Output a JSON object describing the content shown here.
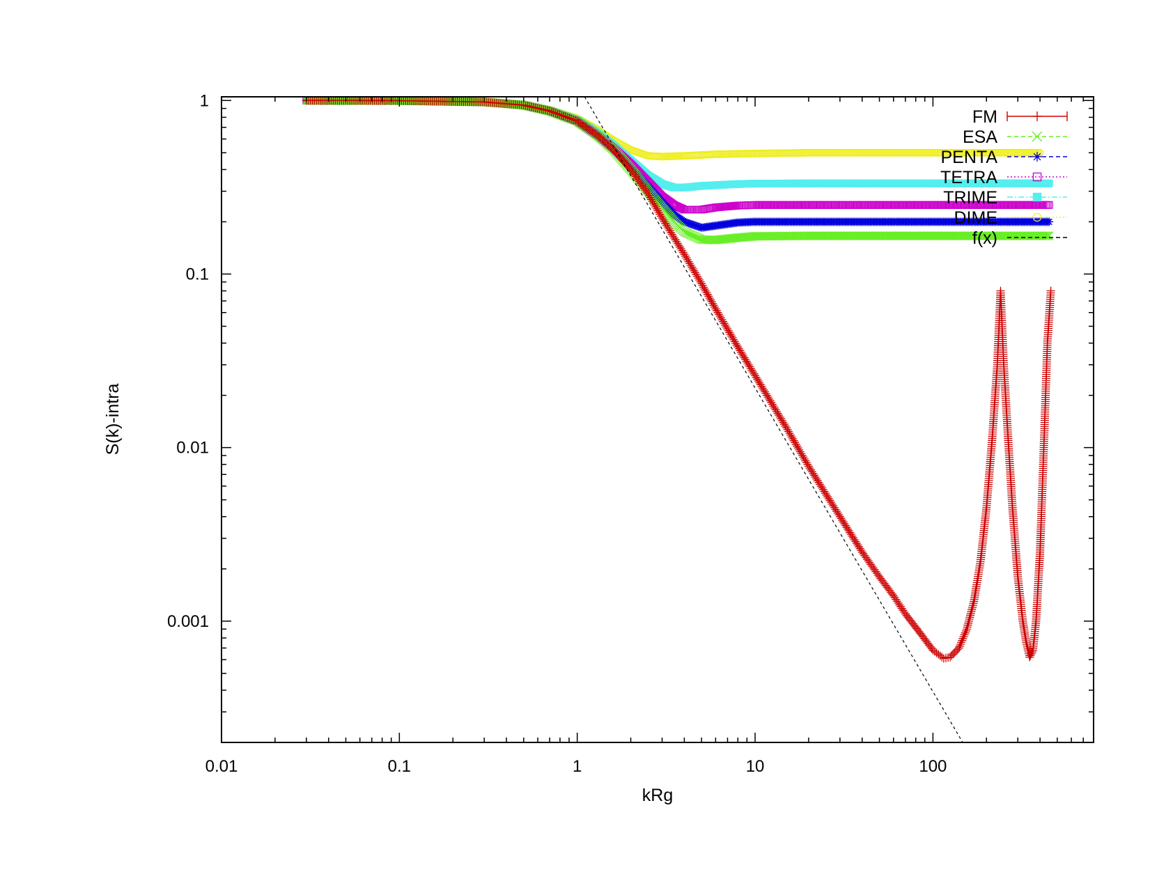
{
  "chart_data": {
    "type": "scatter",
    "title": "",
    "xlabel": "kRg",
    "ylabel": "S(k)-intra",
    "xscale": "log",
    "yscale": "log",
    "xlim": [
      0.01,
      800
    ],
    "ylim": [
      0.0002,
      1.05
    ],
    "grid": false,
    "legend_position": "top-right",
    "x_ticks": [
      {
        "value": 0.01,
        "label": "0.01"
      },
      {
        "value": 0.1,
        "label": "0.1"
      },
      {
        "value": 1,
        "label": "1"
      },
      {
        "value": 10,
        "label": "10"
      },
      {
        "value": 100,
        "label": "100"
      }
    ],
    "y_ticks": [
      {
        "value": 1,
        "label": "1"
      },
      {
        "value": 0.1,
        "label": "0.1"
      },
      {
        "value": 0.01,
        "label": "0.01"
      },
      {
        "value": 0.001,
        "label": "0.001"
      }
    ],
    "series": [
      {
        "name": "FM",
        "color": "#cc0000",
        "marker": "plus",
        "line": "solid",
        "points": [
          [
            0.03,
            1.0
          ],
          [
            0.1,
            0.998
          ],
          [
            0.3,
            0.98
          ],
          [
            0.5,
            0.94
          ],
          [
            0.7,
            0.87
          ],
          [
            1.0,
            0.76
          ],
          [
            1.3,
            0.63
          ],
          [
            1.6,
            0.52
          ],
          [
            2.0,
            0.4
          ],
          [
            2.5,
            0.29
          ],
          [
            3.0,
            0.21
          ],
          [
            4.0,
            0.13
          ],
          [
            5.0,
            0.088
          ],
          [
            6.0,
            0.063
          ],
          [
            8.0,
            0.038
          ],
          [
            10.0,
            0.026
          ],
          [
            15.0,
            0.013
          ],
          [
            20.0,
            0.0078
          ],
          [
            30.0,
            0.004
          ],
          [
            40.0,
            0.0025
          ],
          [
            50.0,
            0.0018
          ],
          [
            60.0,
            0.0014
          ],
          [
            70.0,
            0.0011
          ],
          [
            85.0,
            0.00085
          ],
          [
            100.0,
            0.00068
          ],
          [
            115.0,
            0.00061
          ],
          [
            125.0,
            0.00062
          ],
          [
            140.0,
            0.0007
          ],
          [
            155.0,
            0.0009
          ],
          [
            170.0,
            0.0013
          ],
          [
            185.0,
            0.0022
          ],
          [
            200.0,
            0.0045
          ],
          [
            215.0,
            0.011
          ],
          [
            230.0,
            0.03
          ],
          [
            240.0,
            0.08
          ],
          [
            250.0,
            0.03
          ],
          [
            265.0,
            0.011
          ],
          [
            280.0,
            0.0045
          ],
          [
            300.0,
            0.0018
          ],
          [
            320.0,
            0.001
          ],
          [
            335.0,
            0.00075
          ],
          [
            350.0,
            0.00062
          ],
          [
            365.0,
            0.00068
          ],
          [
            380.0,
            0.001
          ],
          [
            400.0,
            0.0025
          ],
          [
            420.0,
            0.01
          ],
          [
            440.0,
            0.04
          ],
          [
            460.0,
            0.08
          ]
        ]
      },
      {
        "name": "ESA",
        "color": "#66ee22",
        "marker": "cross",
        "line": "dashed",
        "points": [
          [
            0.03,
            1.0
          ],
          [
            0.1,
            0.998
          ],
          [
            0.3,
            0.98
          ],
          [
            0.5,
            0.94
          ],
          [
            0.7,
            0.87
          ],
          [
            1.0,
            0.76
          ],
          [
            1.3,
            0.63
          ],
          [
            1.6,
            0.52
          ],
          [
            2.0,
            0.4
          ],
          [
            2.5,
            0.3
          ],
          [
            3.0,
            0.24
          ],
          [
            3.5,
            0.2
          ],
          [
            4.0,
            0.175
          ],
          [
            5.0,
            0.158
          ],
          [
            6.0,
            0.157
          ],
          [
            8.0,
            0.162
          ],
          [
            10.0,
            0.165
          ],
          [
            20.0,
            0.166
          ],
          [
            50.0,
            0.166
          ],
          [
            100.0,
            0.166
          ],
          [
            200.0,
            0.166
          ],
          [
            450.0,
            0.166
          ]
        ]
      },
      {
        "name": "PENTA",
        "color": "#0000dd",
        "marker": "star",
        "line": "dashed",
        "points": [
          [
            0.03,
            1.0
          ],
          [
            0.1,
            0.998
          ],
          [
            0.3,
            0.98
          ],
          [
            0.5,
            0.94
          ],
          [
            0.7,
            0.87
          ],
          [
            1.0,
            0.76
          ],
          [
            1.3,
            0.63
          ],
          [
            1.6,
            0.52
          ],
          [
            2.0,
            0.41
          ],
          [
            2.5,
            0.32
          ],
          [
            3.0,
            0.26
          ],
          [
            3.5,
            0.22
          ],
          [
            4.0,
            0.2
          ],
          [
            5.0,
            0.185
          ],
          [
            6.0,
            0.19
          ],
          [
            8.0,
            0.198
          ],
          [
            10.0,
            0.2
          ],
          [
            20.0,
            0.2
          ],
          [
            50.0,
            0.2
          ],
          [
            100.0,
            0.2
          ],
          [
            200.0,
            0.2
          ],
          [
            450.0,
            0.2
          ]
        ]
      },
      {
        "name": "TETRA",
        "color": "#cc00cc",
        "marker": "square",
        "line": "dotted",
        "points": [
          [
            0.03,
            1.0
          ],
          [
            0.1,
            0.998
          ],
          [
            0.3,
            0.98
          ],
          [
            0.5,
            0.94
          ],
          [
            0.7,
            0.87
          ],
          [
            1.0,
            0.76
          ],
          [
            1.3,
            0.63
          ],
          [
            1.6,
            0.53
          ],
          [
            2.0,
            0.43
          ],
          [
            2.5,
            0.34
          ],
          [
            3.0,
            0.28
          ],
          [
            3.5,
            0.25
          ],
          [
            4.0,
            0.235
          ],
          [
            5.0,
            0.235
          ],
          [
            6.0,
            0.242
          ],
          [
            8.0,
            0.248
          ],
          [
            10.0,
            0.25
          ],
          [
            20.0,
            0.25
          ],
          [
            50.0,
            0.25
          ],
          [
            100.0,
            0.25
          ],
          [
            200.0,
            0.25
          ],
          [
            450.0,
            0.25
          ]
        ]
      },
      {
        "name": "TRIME",
        "color": "#55eeee",
        "marker": "filled-square",
        "line": "dash-dot",
        "points": [
          [
            0.03,
            1.0
          ],
          [
            0.1,
            0.998
          ],
          [
            0.3,
            0.98
          ],
          [
            0.5,
            0.94
          ],
          [
            0.7,
            0.87
          ],
          [
            1.0,
            0.77
          ],
          [
            1.3,
            0.65
          ],
          [
            1.6,
            0.55
          ],
          [
            2.0,
            0.45
          ],
          [
            2.5,
            0.37
          ],
          [
            3.0,
            0.33
          ],
          [
            3.5,
            0.315
          ],
          [
            4.0,
            0.315
          ],
          [
            5.0,
            0.322
          ],
          [
            8.0,
            0.33
          ],
          [
            10.0,
            0.332
          ],
          [
            20.0,
            0.333
          ],
          [
            50.0,
            0.333
          ],
          [
            100.0,
            0.333
          ],
          [
            200.0,
            0.333
          ],
          [
            450.0,
            0.333
          ]
        ]
      },
      {
        "name": "DIME",
        "color": "#eeee22",
        "marker": "circle",
        "line": "dotted",
        "points": [
          [
            0.03,
            1.0
          ],
          [
            0.1,
            0.998
          ],
          [
            0.3,
            0.98
          ],
          [
            0.5,
            0.94
          ],
          [
            0.7,
            0.88
          ],
          [
            1.0,
            0.79
          ],
          [
            1.3,
            0.68
          ],
          [
            1.6,
            0.59
          ],
          [
            2.0,
            0.52
          ],
          [
            2.5,
            0.48
          ],
          [
            3.0,
            0.475
          ],
          [
            4.0,
            0.48
          ],
          [
            6.0,
            0.49
          ],
          [
            10.0,
            0.495
          ],
          [
            20.0,
            0.5
          ],
          [
            50.0,
            0.5
          ],
          [
            100.0,
            0.5
          ],
          [
            200.0,
            0.5
          ],
          [
            400.0,
            0.5
          ]
        ]
      },
      {
        "name": "f(x)",
        "color": "#000000",
        "marker": "none",
        "line": "dashed",
        "points": [
          [
            1.1,
            1.05
          ],
          [
            150.0,
            0.000193
          ]
        ]
      }
    ]
  }
}
